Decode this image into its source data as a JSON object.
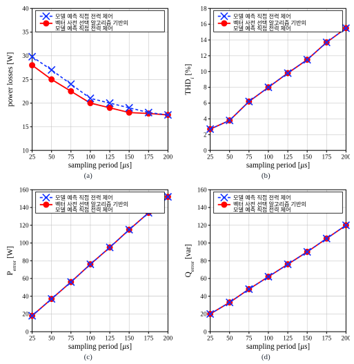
{
  "legend": {
    "series1": "모델 예측 직접 전력 제어",
    "series2_line1": "벡터 사전 선택 알고리즘 기반의",
    "series2_line2": "모델 예측 직접 전력 제어"
  },
  "shared": {
    "xlabel_prefix": "sampling period [",
    "xlabel_unit": "μs",
    "xlabel_suffix": "]",
    "xlim": [
      25,
      200
    ],
    "xticks": [
      25,
      50,
      75,
      100,
      125,
      150,
      175,
      200
    ],
    "xtick_labels": [
      "25",
      "50",
      "75",
      "100",
      "125",
      "150",
      "175",
      "200"
    ],
    "grid_color": "#bbbbbb",
    "axis_color": "#000000",
    "background_color": "#ffffff",
    "tick_fontsize": 9,
    "label_fontsize": 11,
    "legend_fontsize": 8,
    "legend_bg": "#ffffff",
    "legend_border": "#000000",
    "series1_color": "#1030ff",
    "series1_dash": "4 3",
    "series1_linewidth": 1.6,
    "series1_marker": "x",
    "series1_marker_size": 5,
    "series2_color": "#ff0000",
    "series2_dash": "none",
    "series2_linewidth": 1.8,
    "series2_marker": "circle",
    "series2_marker_size": 4
  },
  "panels": [
    {
      "id": "a",
      "caption": "(a)",
      "ylabel": "power losses [W]",
      "ylim": [
        10,
        40
      ],
      "yticks": [
        10,
        15,
        20,
        25,
        30,
        35,
        40
      ],
      "ytick_labels": [
        "10",
        "15",
        "20",
        "25",
        "30",
        "35",
        "40"
      ],
      "series1_y": [
        29.8,
        27.0,
        24.0,
        21.0,
        20.0,
        19.0,
        18.0,
        17.5
      ],
      "series2_y": [
        28.0,
        25.0,
        22.5,
        20.0,
        19.0,
        18.0,
        17.8,
        17.5
      ]
    },
    {
      "id": "b",
      "caption": "(b)",
      "ylabel": "THD_i [%]",
      "ylabel_is_thd": true,
      "ylim": [
        0,
        18
      ],
      "yticks": [
        0,
        2,
        4,
        6,
        8,
        10,
        12,
        14,
        16,
        18
      ],
      "ytick_labels": [
        "0",
        "2",
        "4",
        "6",
        "8",
        "10",
        "12",
        "14",
        "16",
        "18"
      ],
      "series1_y": [
        2.7,
        3.8,
        6.2,
        8.0,
        9.8,
        11.5,
        13.7,
        15.5
      ],
      "series2_y": [
        2.7,
        3.8,
        6.2,
        8.0,
        9.8,
        11.5,
        13.7,
        15.5
      ]
    },
    {
      "id": "c",
      "caption": "(c)",
      "ylabel": "P_error [W]",
      "ylabel_sub": true,
      "ylim": [
        0,
        160
      ],
      "yticks": [
        0,
        20,
        40,
        60,
        80,
        100,
        120,
        140,
        160
      ],
      "ytick_labels": [
        "0",
        "20",
        "40",
        "60",
        "80",
        "100",
        "120",
        "140",
        "160"
      ],
      "series1_y": [
        18,
        37,
        56,
        76,
        95,
        115,
        134,
        152
      ],
      "series2_y": [
        18,
        37,
        56,
        76,
        95,
        115,
        134,
        152
      ]
    },
    {
      "id": "d",
      "caption": "(d)",
      "ylabel": "Q_error [var]",
      "ylabel_sub": true,
      "ylim": [
        0,
        160
      ],
      "yticks": [
        0,
        20,
        40,
        60,
        80,
        100,
        120,
        140,
        160
      ],
      "ytick_labels": [
        "0",
        "20",
        "40",
        "60",
        "80",
        "100",
        "120",
        "140",
        "160"
      ],
      "series1_y": [
        20,
        33,
        48,
        62,
        76,
        90,
        105,
        120
      ],
      "series2_y": [
        20,
        33,
        48,
        62,
        76,
        90,
        105,
        120
      ]
    }
  ]
}
